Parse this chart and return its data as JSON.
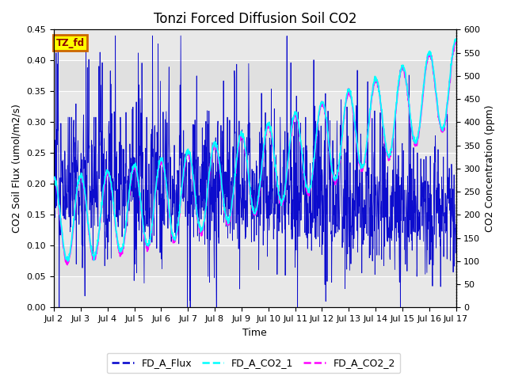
{
  "title": "Tonzi Forced Diffusion Soil CO2",
  "xlabel": "Time",
  "ylabel_left": "CO2 Soil Flux (umol/m2/s)",
  "ylabel_right": "CO2 Concentration (ppm)",
  "ylim_left": [
    0.0,
    0.45
  ],
  "ylim_right": [
    0,
    600
  ],
  "yticks_left": [
    0.0,
    0.05,
    0.1,
    0.15,
    0.2,
    0.25,
    0.3,
    0.35,
    0.4,
    0.45
  ],
  "yticks_right": [
    0,
    50,
    100,
    150,
    200,
    250,
    300,
    350,
    400,
    450,
    500,
    550,
    600
  ],
  "xtick_labels": [
    "Jul 2",
    "Jul 3",
    "Jul 4",
    "Jul 5",
    "Jul 6",
    "Jul 7",
    "Jul 8",
    "Jul 9",
    "Jul 10",
    "Jul 11",
    "Jul 12",
    "Jul 13",
    "Jul 14",
    "Jul 15",
    "Jul 16",
    "Jul 17"
  ],
  "flux_color": "#0000CC",
  "co2_1_color": "#00FFFF",
  "co2_2_color": "#FF00FF",
  "bg_color_light": "#E8E8E8",
  "bg_color_dark": "#D0D0D0",
  "plot_bg": "#E0E0E0",
  "label_box_text": "TZ_fd",
  "label_box_facecolor": "#FFFF00",
  "label_box_edgecolor": "#CC6600",
  "legend_labels": [
    "FD_A_Flux",
    "FD_A_CO2_1",
    "FD_A_CO2_2"
  ],
  "title_fontsize": 12,
  "axis_label_fontsize": 9,
  "tick_fontsize": 8
}
